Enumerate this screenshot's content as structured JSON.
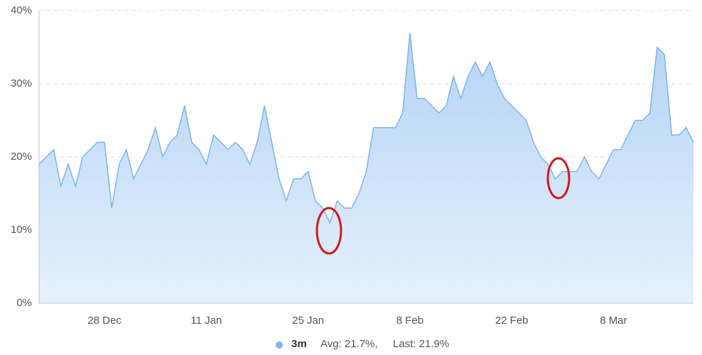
{
  "chart_data": {
    "type": "area",
    "categories": [
      null,
      null,
      null,
      null,
      null,
      null,
      null,
      null,
      null,
      "28 Dec",
      null,
      null,
      null,
      null,
      null,
      null,
      null,
      null,
      null,
      null,
      null,
      null,
      null,
      "11 Jan",
      null,
      null,
      null,
      null,
      null,
      null,
      null,
      null,
      null,
      null,
      null,
      null,
      null,
      "25 Jan",
      null,
      null,
      null,
      null,
      null,
      null,
      null,
      null,
      null,
      null,
      null,
      null,
      null,
      "8 Feb",
      null,
      null,
      null,
      null,
      null,
      null,
      null,
      null,
      null,
      null,
      null,
      null,
      null,
      "22 Feb",
      null,
      null,
      null,
      null,
      null,
      null,
      null,
      null,
      null,
      null,
      null,
      null,
      null,
      "8 Mar",
      null,
      null,
      null,
      null,
      null,
      null,
      null,
      null,
      null,
      null,
      null
    ],
    "series": [
      {
        "name": "3m",
        "color": "#7cb5ec",
        "values": [
          19,
          20,
          21,
          16,
          19,
          16,
          20,
          21,
          22,
          22,
          13,
          19,
          21,
          17,
          19,
          21,
          24,
          20,
          22,
          23,
          27,
          22,
          21,
          19,
          23,
          22,
          21,
          22,
          21,
          19,
          22,
          27,
          22,
          17,
          14,
          17,
          17,
          18,
          14,
          13,
          11,
          14,
          13,
          13,
          15,
          18,
          24,
          24,
          24,
          24,
          26,
          37,
          28,
          28,
          27,
          26,
          27,
          31,
          28,
          31,
          33,
          31,
          33,
          30,
          28,
          27,
          26,
          25,
          22,
          20,
          19,
          17,
          18,
          18,
          18,
          20,
          18,
          17,
          19,
          21,
          21,
          23,
          25,
          25,
          26,
          35,
          34,
          23,
          23,
          24,
          22
        ]
      }
    ],
    "legend_texts": [
      "Avg: 21.7%,",
      "Last: 21.9%"
    ],
    "ylim": [
      0,
      40
    ],
    "yticks": [
      {
        "value": 0,
        "label": "0%"
      },
      {
        "value": 10,
        "label": "10%"
      },
      {
        "value": 20,
        "label": "20%"
      },
      {
        "value": 30,
        "label": "30%"
      },
      {
        "value": 40,
        "label": "40%"
      }
    ],
    "grid": true
  }
}
